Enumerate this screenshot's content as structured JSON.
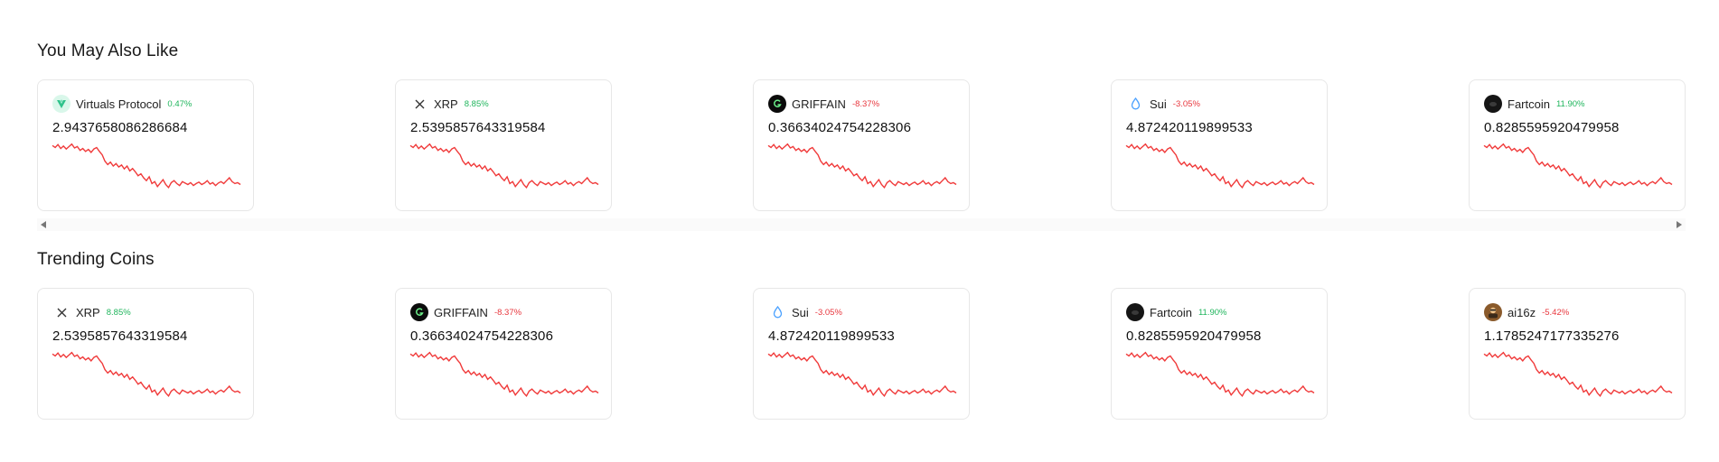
{
  "sections": [
    {
      "title": "You May Also Like",
      "cards": [
        {
          "name": "Virtuals Protocol",
          "change": "0.47%",
          "direction": "up",
          "price": "2.9437658086286684",
          "icon": "virtuals-protocol-icon"
        },
        {
          "name": "XRP",
          "change": "8.85%",
          "direction": "up",
          "price": "2.5395857643319584",
          "icon": "xrp-icon"
        },
        {
          "name": "GRIFFAIN",
          "change": "-8.37%",
          "direction": "down",
          "price": "0.36634024754228306",
          "icon": "griffain-icon"
        },
        {
          "name": "Sui",
          "change": "-3.05%",
          "direction": "down",
          "price": "4.872420119899533",
          "icon": "sui-icon"
        },
        {
          "name": "Fartcoin",
          "change": "11.90%",
          "direction": "up",
          "price": "0.8285595920479958",
          "icon": "fartcoin-icon"
        }
      ]
    },
    {
      "title": "Trending Coins",
      "cards": [
        {
          "name": "XRP",
          "change": "8.85%",
          "direction": "up",
          "price": "2.5395857643319584",
          "icon": "xrp-icon"
        },
        {
          "name": "GRIFFAIN",
          "change": "-8.37%",
          "direction": "down",
          "price": "0.36634024754228306",
          "icon": "griffain-icon"
        },
        {
          "name": "Sui",
          "change": "-3.05%",
          "direction": "down",
          "price": "4.872420119899533",
          "icon": "sui-icon"
        },
        {
          "name": "Fartcoin",
          "change": "11.90%",
          "direction": "up",
          "price": "0.8285595920479958",
          "icon": "fartcoin-icon"
        },
        {
          "name": "ai16z",
          "change": "-5.42%",
          "direction": "down",
          "price": "1.1785247177335276",
          "icon": "ai16z-icon"
        }
      ]
    }
  ],
  "colors": {
    "positive": "#1fb55c",
    "negative": "#e8373e",
    "sparkline": "#f03a3a"
  },
  "sparkline_trend": [
    0.08,
    0.12,
    0.06,
    0.14,
    0.09,
    0.15,
    0.1,
    0.05,
    0.13,
    0.1,
    0.18,
    0.14,
    0.2,
    0.16,
    0.22,
    0.15,
    0.12,
    0.2,
    0.27,
    0.4,
    0.47,
    0.42,
    0.5,
    0.45,
    0.52,
    0.48,
    0.56,
    0.5,
    0.6,
    0.55,
    0.62,
    0.7,
    0.66,
    0.74,
    0.8,
    0.72,
    0.86,
    0.82,
    0.92,
    0.85,
    0.78,
    0.88,
    0.94,
    0.84,
    0.8,
    0.86,
    0.9,
    0.82,
    0.85,
    0.88,
    0.84,
    0.9,
    0.86,
    0.83,
    0.88,
    0.85,
    0.8,
    0.87,
    0.84,
    0.9,
    0.85,
    0.82,
    0.86,
    0.8,
    0.74,
    0.82,
    0.86,
    0.84,
    0.88
  ]
}
